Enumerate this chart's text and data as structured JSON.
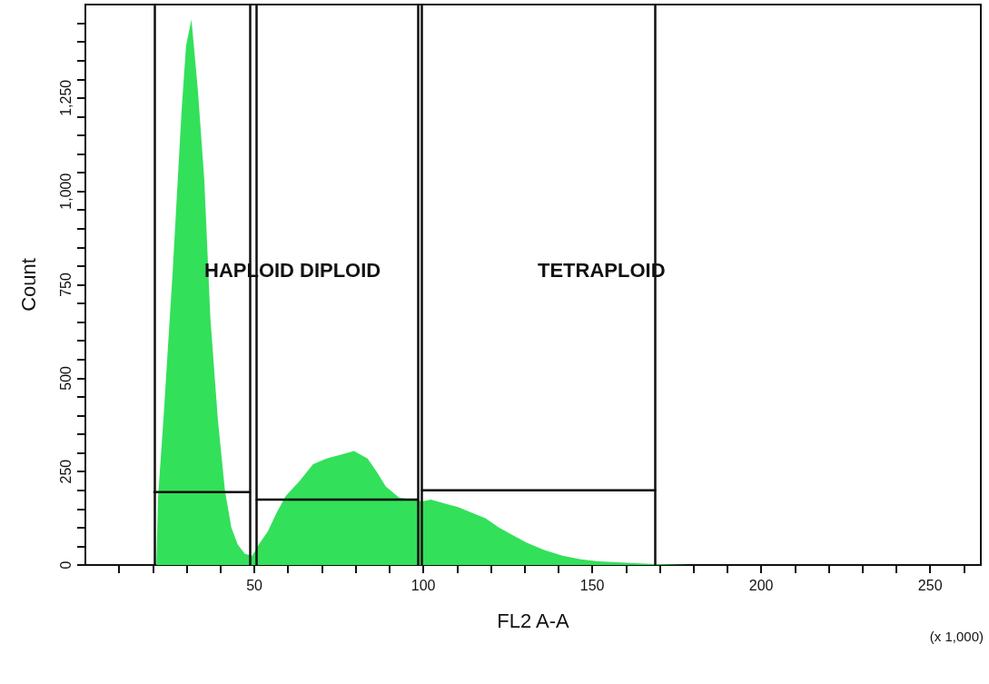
{
  "chart_data": {
    "type": "area",
    "xlabel": "FL2 A-A",
    "ylabel": "Count",
    "xlim": [
      0,
      265
    ],
    "ylim": [
      0,
      1500
    ],
    "xticks": [
      {
        "value": 10,
        "label": null
      },
      {
        "value": 20,
        "label": null
      },
      {
        "value": 30,
        "label": null
      },
      {
        "value": 40,
        "label": null
      },
      50,
      {
        "value": 60,
        "label": null
      },
      {
        "value": 70,
        "label": null
      },
      {
        "value": 80,
        "label": null
      },
      {
        "value": 90,
        "label": null
      },
      100,
      {
        "value": 110,
        "label": null
      },
      {
        "value": 120,
        "label": null
      },
      {
        "value": 130,
        "label": null
      },
      {
        "value": 140,
        "label": null
      },
      150,
      {
        "value": 160,
        "label": null
      },
      {
        "value": 170,
        "label": null
      },
      {
        "value": 180,
        "label": null
      },
      {
        "value": 190,
        "label": null
      },
      200,
      {
        "value": 210,
        "label": null
      },
      {
        "value": 220,
        "label": null
      },
      {
        "value": 230,
        "label": null
      },
      {
        "value": 240,
        "label": null
      },
      250,
      {
        "value": 260,
        "label": null
      }
    ],
    "yticks": [
      0,
      {
        "value": 50,
        "label": null
      },
      {
        "value": 100,
        "label": null
      },
      {
        "value": 150,
        "label": null
      },
      {
        "value": 200,
        "label": null
      },
      250,
      {
        "value": 300,
        "label": null
      },
      {
        "value": 350,
        "label": null
      },
      {
        "value": 400,
        "label": null
      },
      {
        "value": 450,
        "label": null
      },
      500,
      {
        "value": 550,
        "label": null
      },
      {
        "value": 600,
        "label": null
      },
      {
        "value": 650,
        "label": null
      },
      {
        "value": 700,
        "label": null
      },
      750,
      {
        "value": 800,
        "label": null
      },
      {
        "value": 850,
        "label": null
      },
      {
        "value": 900,
        "label": null
      },
      {
        "value": 950,
        "label": null
      },
      {
        "value": 1000,
        "label": "1,000"
      },
      {
        "value": 1050,
        "label": null
      },
      {
        "value": 1100,
        "label": null
      },
      {
        "value": 1150,
        "label": null
      },
      {
        "value": 1200,
        "label": null
      },
      {
        "value": 1250,
        "label": "1,250"
      },
      {
        "value": 1300,
        "label": null
      },
      {
        "value": 1350,
        "label": null
      },
      {
        "value": 1400,
        "label": null
      },
      {
        "value": 1450,
        "label": null
      }
    ],
    "grid": false,
    "marker": "none",
    "series": [
      {
        "color": "#33e05a",
        "x": [
          21,
          21.5,
          23.1,
          25.8,
          28.5,
          29.8,
          31.4,
          33.3,
          35.2,
          37,
          39.2,
          41.3,
          43.2,
          45.1,
          47.2,
          49.4,
          51.3,
          54,
          56.6,
          59.3,
          63.4,
          67.4,
          71.4,
          75.4,
          79.5,
          83.5,
          86.2,
          88.9,
          92.9,
          96.9,
          99.6,
          102.3,
          106.3,
          110.3,
          114.4,
          118.4,
          122.4,
          126.4,
          130.5,
          135.8,
          141.2,
          146.6,
          151.9,
          157.3,
          162.7,
          170.7,
          178.8,
          260
        ],
        "values": [
          0,
          180,
          390,
          780,
          1220,
          1390,
          1460,
          1270,
          1030,
          660,
          390,
          200,
          100,
          55,
          30,
          25,
          55,
          90,
          140,
          185,
          225,
          270,
          285,
          295,
          305,
          285,
          250,
          210,
          180,
          175,
          170,
          175,
          165,
          155,
          140,
          125,
          100,
          80,
          60,
          40,
          25,
          15,
          10,
          7,
          5,
          2,
          0,
          0
        ]
      },
      {
        "type": "line",
        "color": "#000000",
        "x": [
          20.4,
          48.6
        ],
        "values": [
          195,
          195
        ]
      },
      {
        "type": "line",
        "color": "#000000",
        "x": [
          50.7,
          98.3
        ],
        "values": [
          175,
          175
        ]
      },
      {
        "type": "line",
        "color": "#000000",
        "x": [
          99.6,
          168.6
        ],
        "values": [
          200,
          200
        ]
      }
    ],
    "ref_lines": [
      {
        "axis": "x",
        "value": 20.4
      },
      {
        "axis": "x",
        "value": 48.6
      },
      {
        "axis": "x",
        "value": 50.7
      },
      {
        "axis": "x",
        "value": 98.3
      },
      {
        "axis": "x",
        "value": 99.6
      },
      {
        "axis": "x",
        "value": 168.6
      }
    ],
    "annotations": [
      "HAPLOID",
      "DIPLOID",
      "TETRAPLOID",
      "(x 1,000)"
    ]
  }
}
